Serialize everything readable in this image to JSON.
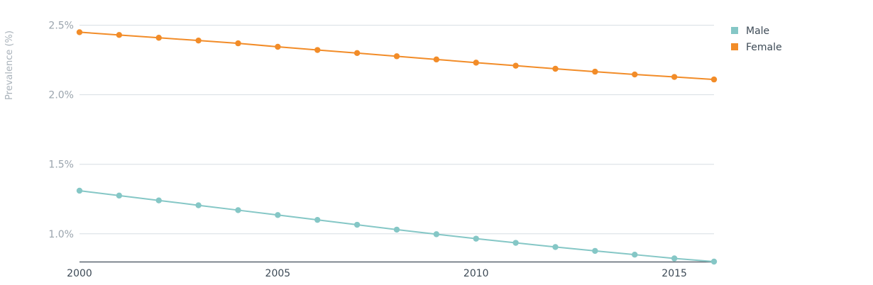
{
  "chart_data": {
    "type": "line",
    "ylabel": "Prevalence (%)",
    "xlabel": "",
    "x": [
      2000,
      2001,
      2002,
      2003,
      2004,
      2005,
      2006,
      2007,
      2008,
      2009,
      2010,
      2011,
      2012,
      2013,
      2014,
      2015,
      2016
    ],
    "xlim": [
      2000,
      2016
    ],
    "ylim": [
      0.8,
      2.6
    ],
    "x_ticks": [
      2000,
      2005,
      2010,
      2015
    ],
    "x_tick_labels": [
      "2000",
      "2005",
      "2010",
      "2015"
    ],
    "y_ticks": [
      1.0,
      1.5,
      2.0,
      2.5
    ],
    "y_tick_labels": [
      "1.0%",
      "1.5%",
      "2.0%",
      "2.5%"
    ],
    "grid": true,
    "legend_position": "top-right",
    "series": [
      {
        "name": "Male",
        "color": "#85c7c6",
        "values": [
          1.31,
          1.275,
          1.24,
          1.205,
          1.17,
          1.135,
          1.1,
          1.065,
          1.03,
          0.997,
          0.965,
          0.935,
          0.905,
          0.877,
          0.85,
          0.823,
          0.8
        ]
      },
      {
        "name": "Female",
        "color": "#f28c28",
        "values": [
          2.45,
          2.43,
          2.41,
          2.39,
          2.37,
          2.345,
          2.322,
          2.3,
          2.277,
          2.254,
          2.231,
          2.209,
          2.187,
          2.166,
          2.146,
          2.128,
          2.11
        ]
      }
    ]
  }
}
